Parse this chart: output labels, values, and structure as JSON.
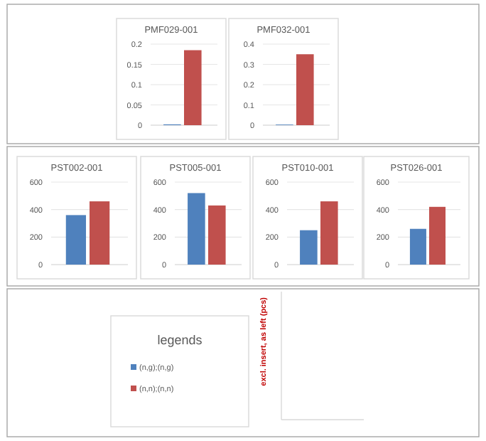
{
  "chart_data": [
    {
      "type": "bar",
      "title": "PMF029-001",
      "categories": [
        null
      ],
      "series": [
        {
          "color": "#4f81bd",
          "values": [
            0.002
          ]
        },
        {
          "color": "#c0504d",
          "values": [
            0.185
          ]
        }
      ],
      "ylim": [
        0,
        0.2
      ],
      "yticks": [
        0,
        0.05,
        0.1,
        0.15,
        0.2
      ],
      "grid": "y"
    },
    {
      "type": "bar",
      "title": "PMF032-001",
      "categories": [
        null
      ],
      "series": [
        {
          "color": "#4f81bd",
          "values": [
            0.003
          ]
        },
        {
          "color": "#c0504d",
          "values": [
            0.35
          ]
        }
      ],
      "ylim": [
        0,
        0.4
      ],
      "yticks": [
        0,
        0.1,
        0.2,
        0.3,
        0.4
      ],
      "grid": "y"
    },
    {
      "type": "bar",
      "title": "PST002-001",
      "categories": [
        null
      ],
      "series": [
        {
          "color": "#4f81bd",
          "values": [
            360
          ]
        },
        {
          "color": "#c0504d",
          "values": [
            460
          ]
        }
      ],
      "ylim": [
        0,
        600
      ],
      "yticks": [
        0,
        200,
        400,
        600
      ],
      "grid": "y"
    },
    {
      "type": "bar",
      "title": "PST005-001",
      "categories": [
        null
      ],
      "series": [
        {
          "color": "#4f81bd",
          "values": [
            520
          ]
        },
        {
          "color": "#c0504d",
          "values": [
            430
          ]
        }
      ],
      "ylim": [
        0,
        600
      ],
      "yticks": [
        0,
        200,
        400,
        600
      ],
      "grid": "y"
    },
    {
      "type": "bar",
      "title": "PST010-001",
      "categories": [
        null
      ],
      "series": [
        {
          "color": "#4f81bd",
          "values": [
            250
          ]
        },
        {
          "color": "#c0504d",
          "values": [
            460
          ]
        }
      ],
      "ylim": [
        0,
        600
      ],
      "yticks": [
        0,
        200,
        400,
        600
      ],
      "grid": "y"
    },
    {
      "type": "bar",
      "title": "PST026-001",
      "categories": [
        null
      ],
      "series": [
        {
          "color": "#4f81bd",
          "values": [
            260
          ]
        },
        {
          "color": "#c0504d",
          "values": [
            420
          ]
        }
      ],
      "ylim": [
        0,
        600
      ],
      "yticks": [
        0,
        200,
        400,
        600
      ],
      "grid": "y"
    },
    {
      "type": "other",
      "title": "legends",
      "series": [
        {
          "name": "(n,g);(n,g)",
          "color": "#4f81bd"
        },
        {
          "name": "(n,n);(n,n)",
          "color": "#c0504d"
        }
      ],
      "legend": "left"
    },
    {
      "type": "other",
      "ylabel": "excl. insert, as left (pcs)"
    }
  ]
}
